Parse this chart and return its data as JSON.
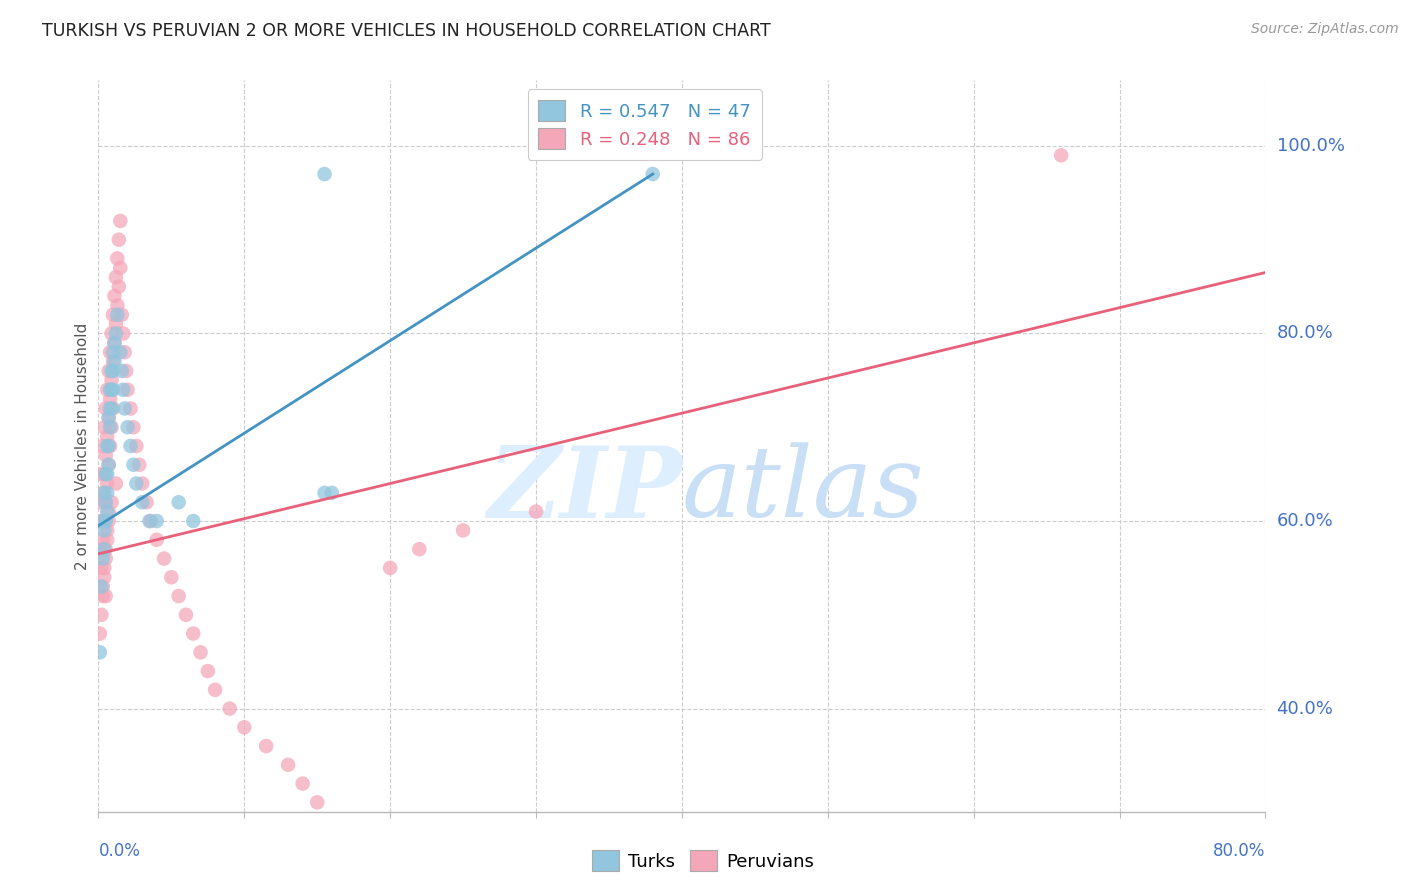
{
  "title": "TURKISH VS PERUVIAN 2 OR MORE VEHICLES IN HOUSEHOLD CORRELATION CHART",
  "source": "Source: ZipAtlas.com",
  "ylabel": "2 or more Vehicles in Household",
  "ytick_labels": [
    "40.0%",
    "60.0%",
    "80.0%",
    "100.0%"
  ],
  "ytick_values": [
    0.4,
    0.6,
    0.8,
    1.0
  ],
  "xmin": 0.0,
  "xmax": 0.8,
  "ymin": 0.29,
  "ymax": 1.07,
  "legend_blue_text": "R = 0.547   N = 47",
  "legend_pink_text": "R = 0.248   N = 86",
  "legend_label_blue": "Turks",
  "legend_label_pink": "Peruvians",
  "blue_color": "#92c5de",
  "pink_color": "#f4a7b9",
  "blue_line_color": "#4393c3",
  "pink_line_color": "#e8607a",
  "title_color": "#222222",
  "axis_label_color": "#4472c4",
  "source_color": "#999999",
  "grid_color": "#cccccc",
  "watermark_color": "#ddeeff",
  "turks_x": [
    0.001,
    0.002,
    0.003,
    0.003,
    0.004,
    0.004,
    0.004,
    0.005,
    0.005,
    0.005,
    0.006,
    0.006,
    0.006,
    0.006,
    0.007,
    0.007,
    0.007,
    0.008,
    0.008,
    0.008,
    0.009,
    0.009,
    0.009,
    0.01,
    0.01,
    0.01,
    0.011,
    0.011,
    0.012,
    0.013,
    0.015,
    0.016,
    0.017,
    0.018,
    0.02,
    0.022,
    0.024,
    0.026,
    0.03,
    0.035,
    0.04,
    0.055,
    0.065,
    0.155,
    0.16,
    0.155,
    0.38
  ],
  "turks_y": [
    0.46,
    0.53,
    0.6,
    0.56,
    0.63,
    0.59,
    0.57,
    0.65,
    0.62,
    0.6,
    0.68,
    0.65,
    0.63,
    0.61,
    0.71,
    0.68,
    0.66,
    0.74,
    0.72,
    0.7,
    0.76,
    0.74,
    0.72,
    0.78,
    0.76,
    0.74,
    0.79,
    0.77,
    0.8,
    0.82,
    0.78,
    0.76,
    0.74,
    0.72,
    0.7,
    0.68,
    0.66,
    0.64,
    0.62,
    0.6,
    0.6,
    0.62,
    0.6,
    0.63,
    0.63,
    0.97,
    0.97
  ],
  "peruvians_x": [
    0.001,
    0.001,
    0.002,
    0.002,
    0.002,
    0.003,
    0.003,
    0.003,
    0.003,
    0.004,
    0.004,
    0.004,
    0.004,
    0.005,
    0.005,
    0.005,
    0.005,
    0.005,
    0.006,
    0.006,
    0.006,
    0.006,
    0.007,
    0.007,
    0.007,
    0.007,
    0.008,
    0.008,
    0.008,
    0.009,
    0.009,
    0.009,
    0.01,
    0.01,
    0.01,
    0.011,
    0.011,
    0.012,
    0.012,
    0.013,
    0.013,
    0.014,
    0.014,
    0.015,
    0.015,
    0.016,
    0.017,
    0.018,
    0.019,
    0.02,
    0.022,
    0.024,
    0.026,
    0.028,
    0.03,
    0.033,
    0.036,
    0.04,
    0.045,
    0.05,
    0.055,
    0.06,
    0.065,
    0.07,
    0.075,
    0.08,
    0.09,
    0.1,
    0.115,
    0.13,
    0.14,
    0.15,
    0.2,
    0.22,
    0.25,
    0.3,
    0.001,
    0.002,
    0.003,
    0.004,
    0.005,
    0.006,
    0.007,
    0.009,
    0.012,
    0.66
  ],
  "peruvians_y": [
    0.62,
    0.57,
    0.65,
    0.6,
    0.55,
    0.68,
    0.63,
    0.58,
    0.53,
    0.7,
    0.65,
    0.6,
    0.55,
    0.72,
    0.67,
    0.62,
    0.57,
    0.52,
    0.74,
    0.69,
    0.64,
    0.59,
    0.76,
    0.71,
    0.66,
    0.61,
    0.78,
    0.73,
    0.68,
    0.8,
    0.75,
    0.7,
    0.82,
    0.77,
    0.72,
    0.84,
    0.79,
    0.86,
    0.81,
    0.88,
    0.83,
    0.9,
    0.85,
    0.92,
    0.87,
    0.82,
    0.8,
    0.78,
    0.76,
    0.74,
    0.72,
    0.7,
    0.68,
    0.66,
    0.64,
    0.62,
    0.6,
    0.58,
    0.56,
    0.54,
    0.52,
    0.5,
    0.48,
    0.46,
    0.44,
    0.42,
    0.4,
    0.38,
    0.36,
    0.34,
    0.32,
    0.3,
    0.55,
    0.57,
    0.59,
    0.61,
    0.48,
    0.5,
    0.52,
    0.54,
    0.56,
    0.58,
    0.6,
    0.62,
    0.64,
    0.99
  ],
  "blue_trendline_x": [
    0.0,
    0.38
  ],
  "blue_trendline_y": [
    0.595,
    0.97
  ],
  "pink_trendline_x": [
    0.0,
    0.8
  ],
  "pink_trendline_y": [
    0.565,
    0.865
  ]
}
